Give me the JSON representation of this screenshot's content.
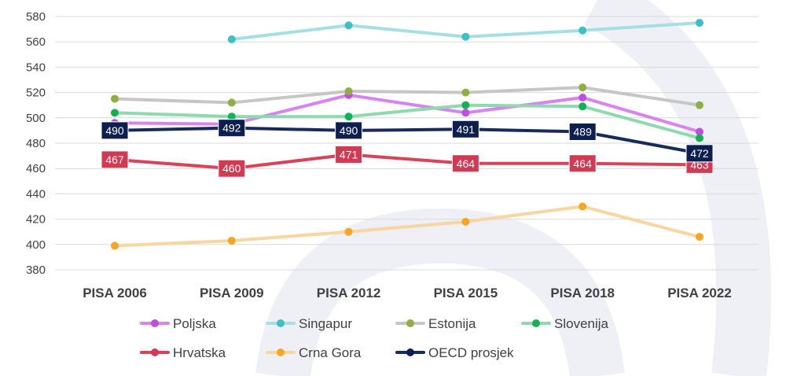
{
  "chart_data": {
    "type": "line",
    "categories": [
      "PISA 2006",
      "PISA 2009",
      "PISA 2012",
      "PISA 2015",
      "PISA 2018",
      "PISA 2022"
    ],
    "ylim": [
      380,
      580
    ],
    "yticks": [
      380,
      400,
      420,
      440,
      460,
      480,
      500,
      520,
      540,
      560,
      580
    ],
    "grid": true,
    "legend_position": "bottom",
    "series": [
      {
        "name": "Poljska",
        "color": "#d883f2",
        "values": [
          496,
          495,
          518,
          504,
          516,
          489
        ]
      },
      {
        "name": "Singapur",
        "color": "#a6dfe3",
        "values": [
          null,
          562,
          573,
          564,
          569,
          575
        ]
      },
      {
        "name": "Estonija",
        "color": "#c6c6c6",
        "values": [
          515,
          512,
          521,
          520,
          524,
          510
        ]
      },
      {
        "name": "Slovenija",
        "color": "#8fd9ae",
        "values": [
          504,
          501,
          501,
          510,
          509,
          484
        ]
      },
      {
        "name": "Hrvatska",
        "color": "#d94257",
        "values": [
          467,
          460,
          471,
          464,
          464,
          463
        ],
        "labeled": true
      },
      {
        "name": "Crna Gora",
        "color": "#f9d5a0",
        "values": [
          399,
          403,
          410,
          418,
          430,
          406
        ]
      },
      {
        "name": "OECD prosjek",
        "color": "#172b5c",
        "values": [
          490,
          492,
          490,
          491,
          489,
          472
        ],
        "labeled": true
      }
    ],
    "marker_colors": {
      "Poljska": "#c04de8",
      "Singapur": "#3cbfc5",
      "Estonija": "#8fb040",
      "Slovenija": "#14b055",
      "Hrvatska": "#d13a52",
      "Crna Gora": "#f5a623",
      "OECD prosjek": "#0d1f4e"
    }
  }
}
